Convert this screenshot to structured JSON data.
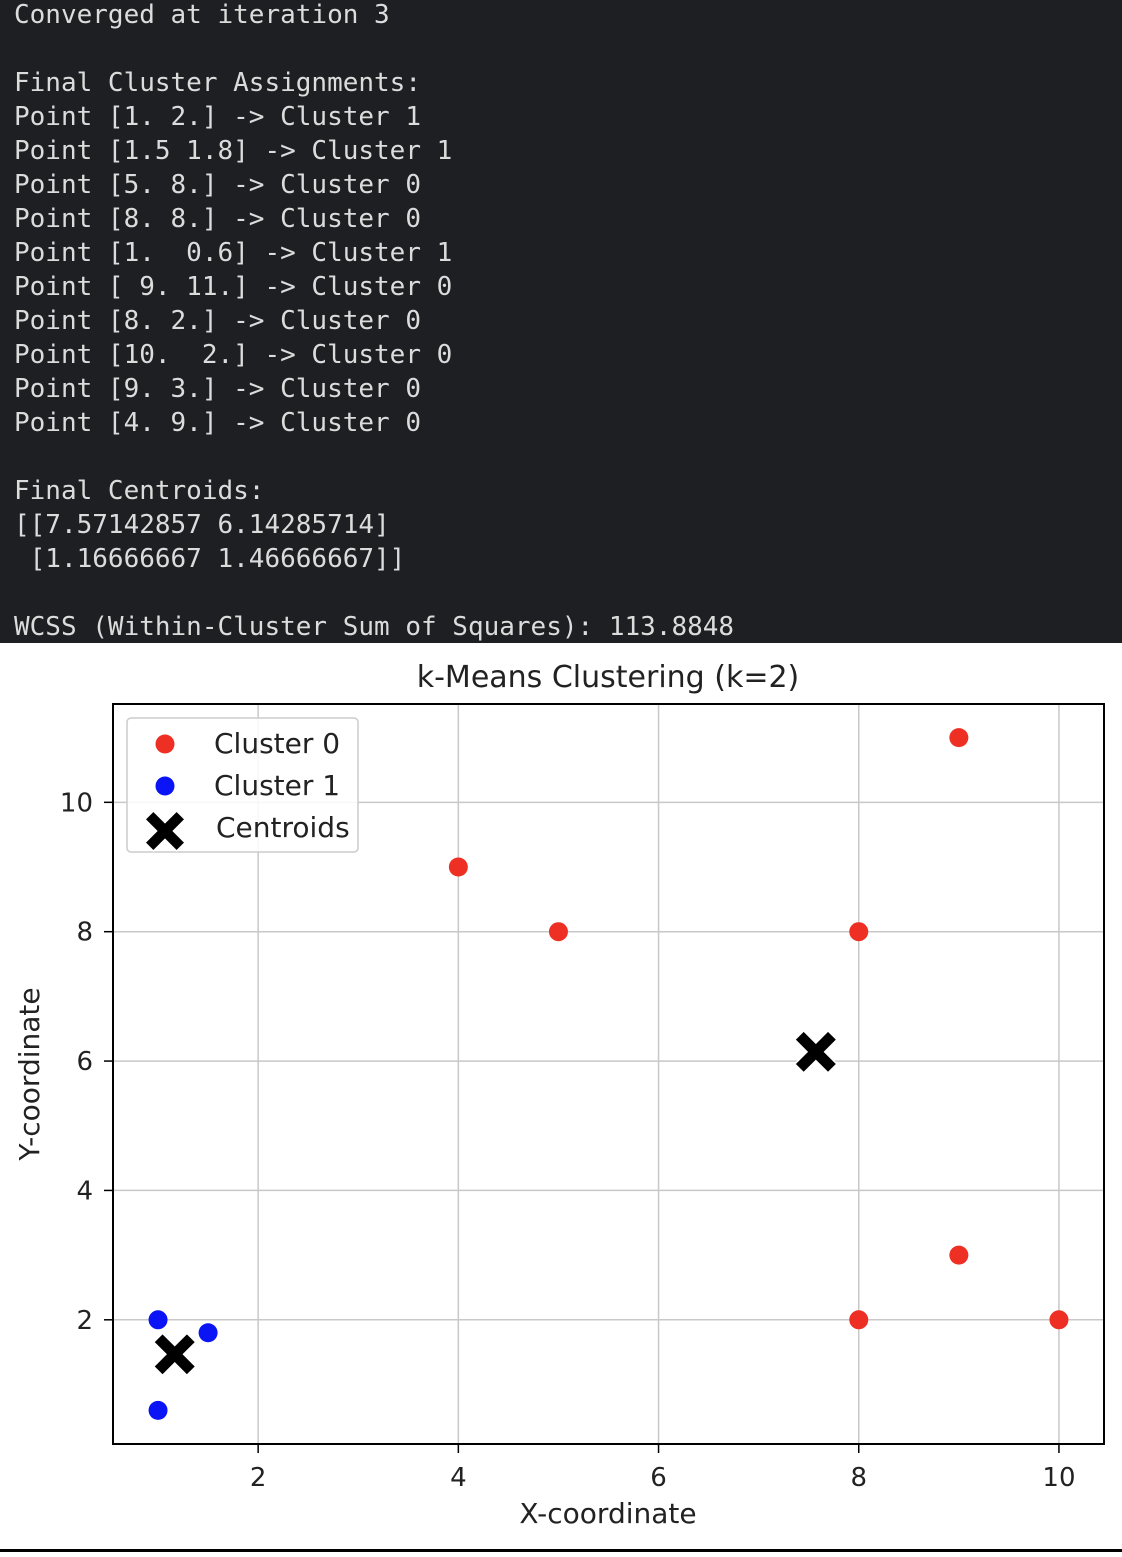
{
  "console": {
    "lines": [
      "Converged at iteration 3",
      "",
      "Final Cluster Assignments:",
      "Point [1. 2.] -> Cluster 1",
      "Point [1.5 1.8] -> Cluster 1",
      "Point [5. 8.] -> Cluster 0",
      "Point [8. 8.] -> Cluster 0",
      "Point [1.  0.6] -> Cluster 1",
      "Point [ 9. 11.] -> Cluster 0",
      "Point [8. 2.] -> Cluster 0",
      "Point [10.  2.] -> Cluster 0",
      "Point [9. 3.] -> Cluster 0",
      "Point [4. 9.] -> Cluster 0",
      "",
      "Final Centroids:",
      "[[7.57142857 6.14285714]",
      " [1.16666667 1.46666667]]",
      "",
      "WCSS (Within-Cluster Sum of Squares): 113.8848"
    ]
  },
  "chart_data": {
    "type": "scatter",
    "title": "k-Means Clustering (k=2)",
    "xlabel": "X-coordinate",
    "ylabel": "Y-coordinate",
    "xlim": [
      0.55,
      10.45
    ],
    "ylim": [
      0.08,
      11.52
    ],
    "xticks": [
      2,
      4,
      6,
      8,
      10
    ],
    "yticks": [
      2,
      4,
      6,
      8,
      10
    ],
    "grid": true,
    "legend_position": "top-left",
    "series": [
      {
        "name": "Cluster 0",
        "color": "#ee3024",
        "marker": "circle",
        "points": [
          [
            5,
            8
          ],
          [
            8,
            8
          ],
          [
            9,
            11
          ],
          [
            8,
            2
          ],
          [
            10,
            2
          ],
          [
            9,
            3
          ],
          [
            4,
            9
          ]
        ]
      },
      {
        "name": "Cluster 1",
        "color": "#0a14f5",
        "marker": "circle",
        "points": [
          [
            1,
            2
          ],
          [
            1.5,
            1.8
          ],
          [
            1,
            0.6
          ]
        ]
      },
      {
        "name": "Centroids",
        "color": "#000000",
        "marker": "X",
        "points": [
          [
            7.57142857,
            6.14285714
          ],
          [
            1.16666667,
            1.46666667
          ]
        ]
      }
    ]
  }
}
